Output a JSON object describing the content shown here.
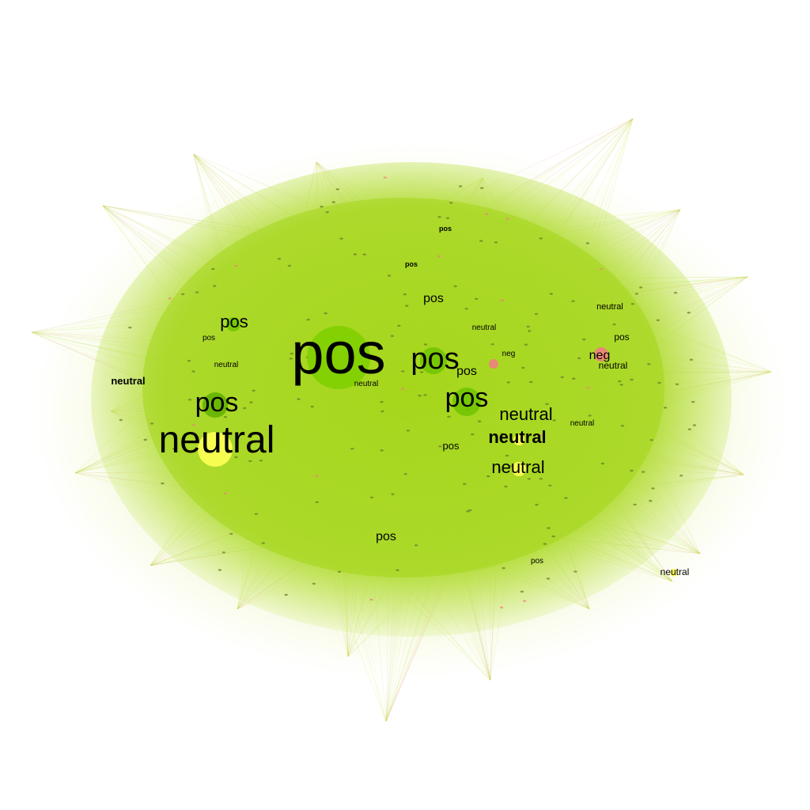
{
  "colors": {
    "pos": "#7fd000",
    "pos_dark": "#5fb000",
    "neutral": "#ffff55",
    "neg": "#f08080",
    "edge_green": "#a8dc28",
    "edge_yellow": "#e6f064",
    "edge_red": "#e49a70",
    "node_small": "#6a7a2a"
  },
  "graph": {
    "labels": [
      {
        "text": "pos",
        "weight": "normal",
        "size": "xl"
      },
      {
        "text": "neutral",
        "weight": "normal",
        "size": "l"
      },
      {
        "text": "pos",
        "weight": "normal",
        "size": "m"
      },
      {
        "text": "pos",
        "weight": "normal",
        "size": "m"
      },
      {
        "text": "pos",
        "weight": "normal",
        "size": "m"
      },
      {
        "text": "pos",
        "weight": "normal",
        "size": "s"
      },
      {
        "text": "neutral",
        "weight": "normal",
        "size": "s"
      },
      {
        "text": "neutral",
        "weight": "bold",
        "size": "s"
      },
      {
        "text": "neutral",
        "weight": "normal",
        "size": "s"
      },
      {
        "text": "neg",
        "weight": "normal",
        "size": "s"
      },
      {
        "text": "pos",
        "weight": "normal",
        "size": "xs"
      },
      {
        "text": "pos",
        "weight": "normal",
        "size": "xs"
      },
      {
        "text": "neutral",
        "weight": "bold",
        "size": "xs"
      },
      {
        "text": "pos",
        "weight": "normal",
        "size": "xs"
      },
      {
        "text": "pos",
        "weight": "normal",
        "size": "xs"
      },
      {
        "text": "neutral",
        "weight": "normal",
        "size": "xs"
      },
      {
        "text": "neutral",
        "weight": "normal",
        "size": "xs"
      },
      {
        "text": "pos",
        "weight": "normal",
        "size": "xs"
      },
      {
        "text": "pos",
        "weight": "normal",
        "size": "xs"
      },
      {
        "text": "neutral",
        "weight": "normal",
        "size": "xs"
      },
      {
        "text": "neutral",
        "weight": "normal",
        "size": "xs"
      },
      {
        "text": "neutral",
        "weight": "normal",
        "size": "xs"
      },
      {
        "text": "neutral",
        "weight": "normal",
        "size": "xs"
      },
      {
        "text": "pos",
        "weight": "normal",
        "size": "xs"
      },
      {
        "text": "pos",
        "weight": "normal",
        "size": "xs"
      },
      {
        "text": "pos",
        "weight": "normal",
        "size": "xs"
      },
      {
        "text": "neg",
        "weight": "normal",
        "size": "xs"
      },
      {
        "text": "neutral",
        "weight": "normal",
        "size": "xs"
      }
    ]
  }
}
